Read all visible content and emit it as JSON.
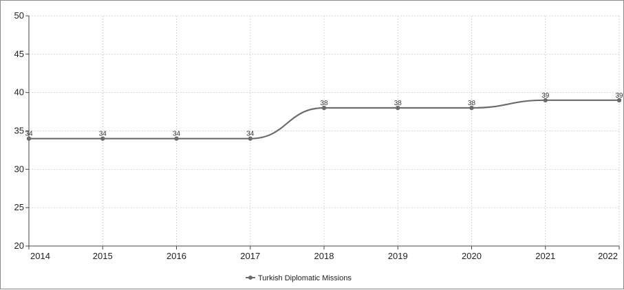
{
  "chart_data": {
    "type": "line",
    "title": "",
    "xlabel": "",
    "ylabel": "",
    "x": [
      "2014",
      "2015",
      "2016",
      "2017",
      "2018",
      "2019",
      "2020",
      "2021",
      "2022"
    ],
    "series": [
      {
        "name": "Turkish Diplomatic Missions",
        "values": [
          34,
          34,
          34,
          34,
          38,
          38,
          38,
          39,
          39
        ],
        "color": "#6b6b6b"
      }
    ],
    "ylim": [
      20,
      50
    ],
    "yticks": [
      20,
      25,
      30,
      35,
      40,
      45,
      50
    ],
    "grid": true,
    "smooth": true,
    "data_labels": true,
    "legend": "bottom-center"
  }
}
